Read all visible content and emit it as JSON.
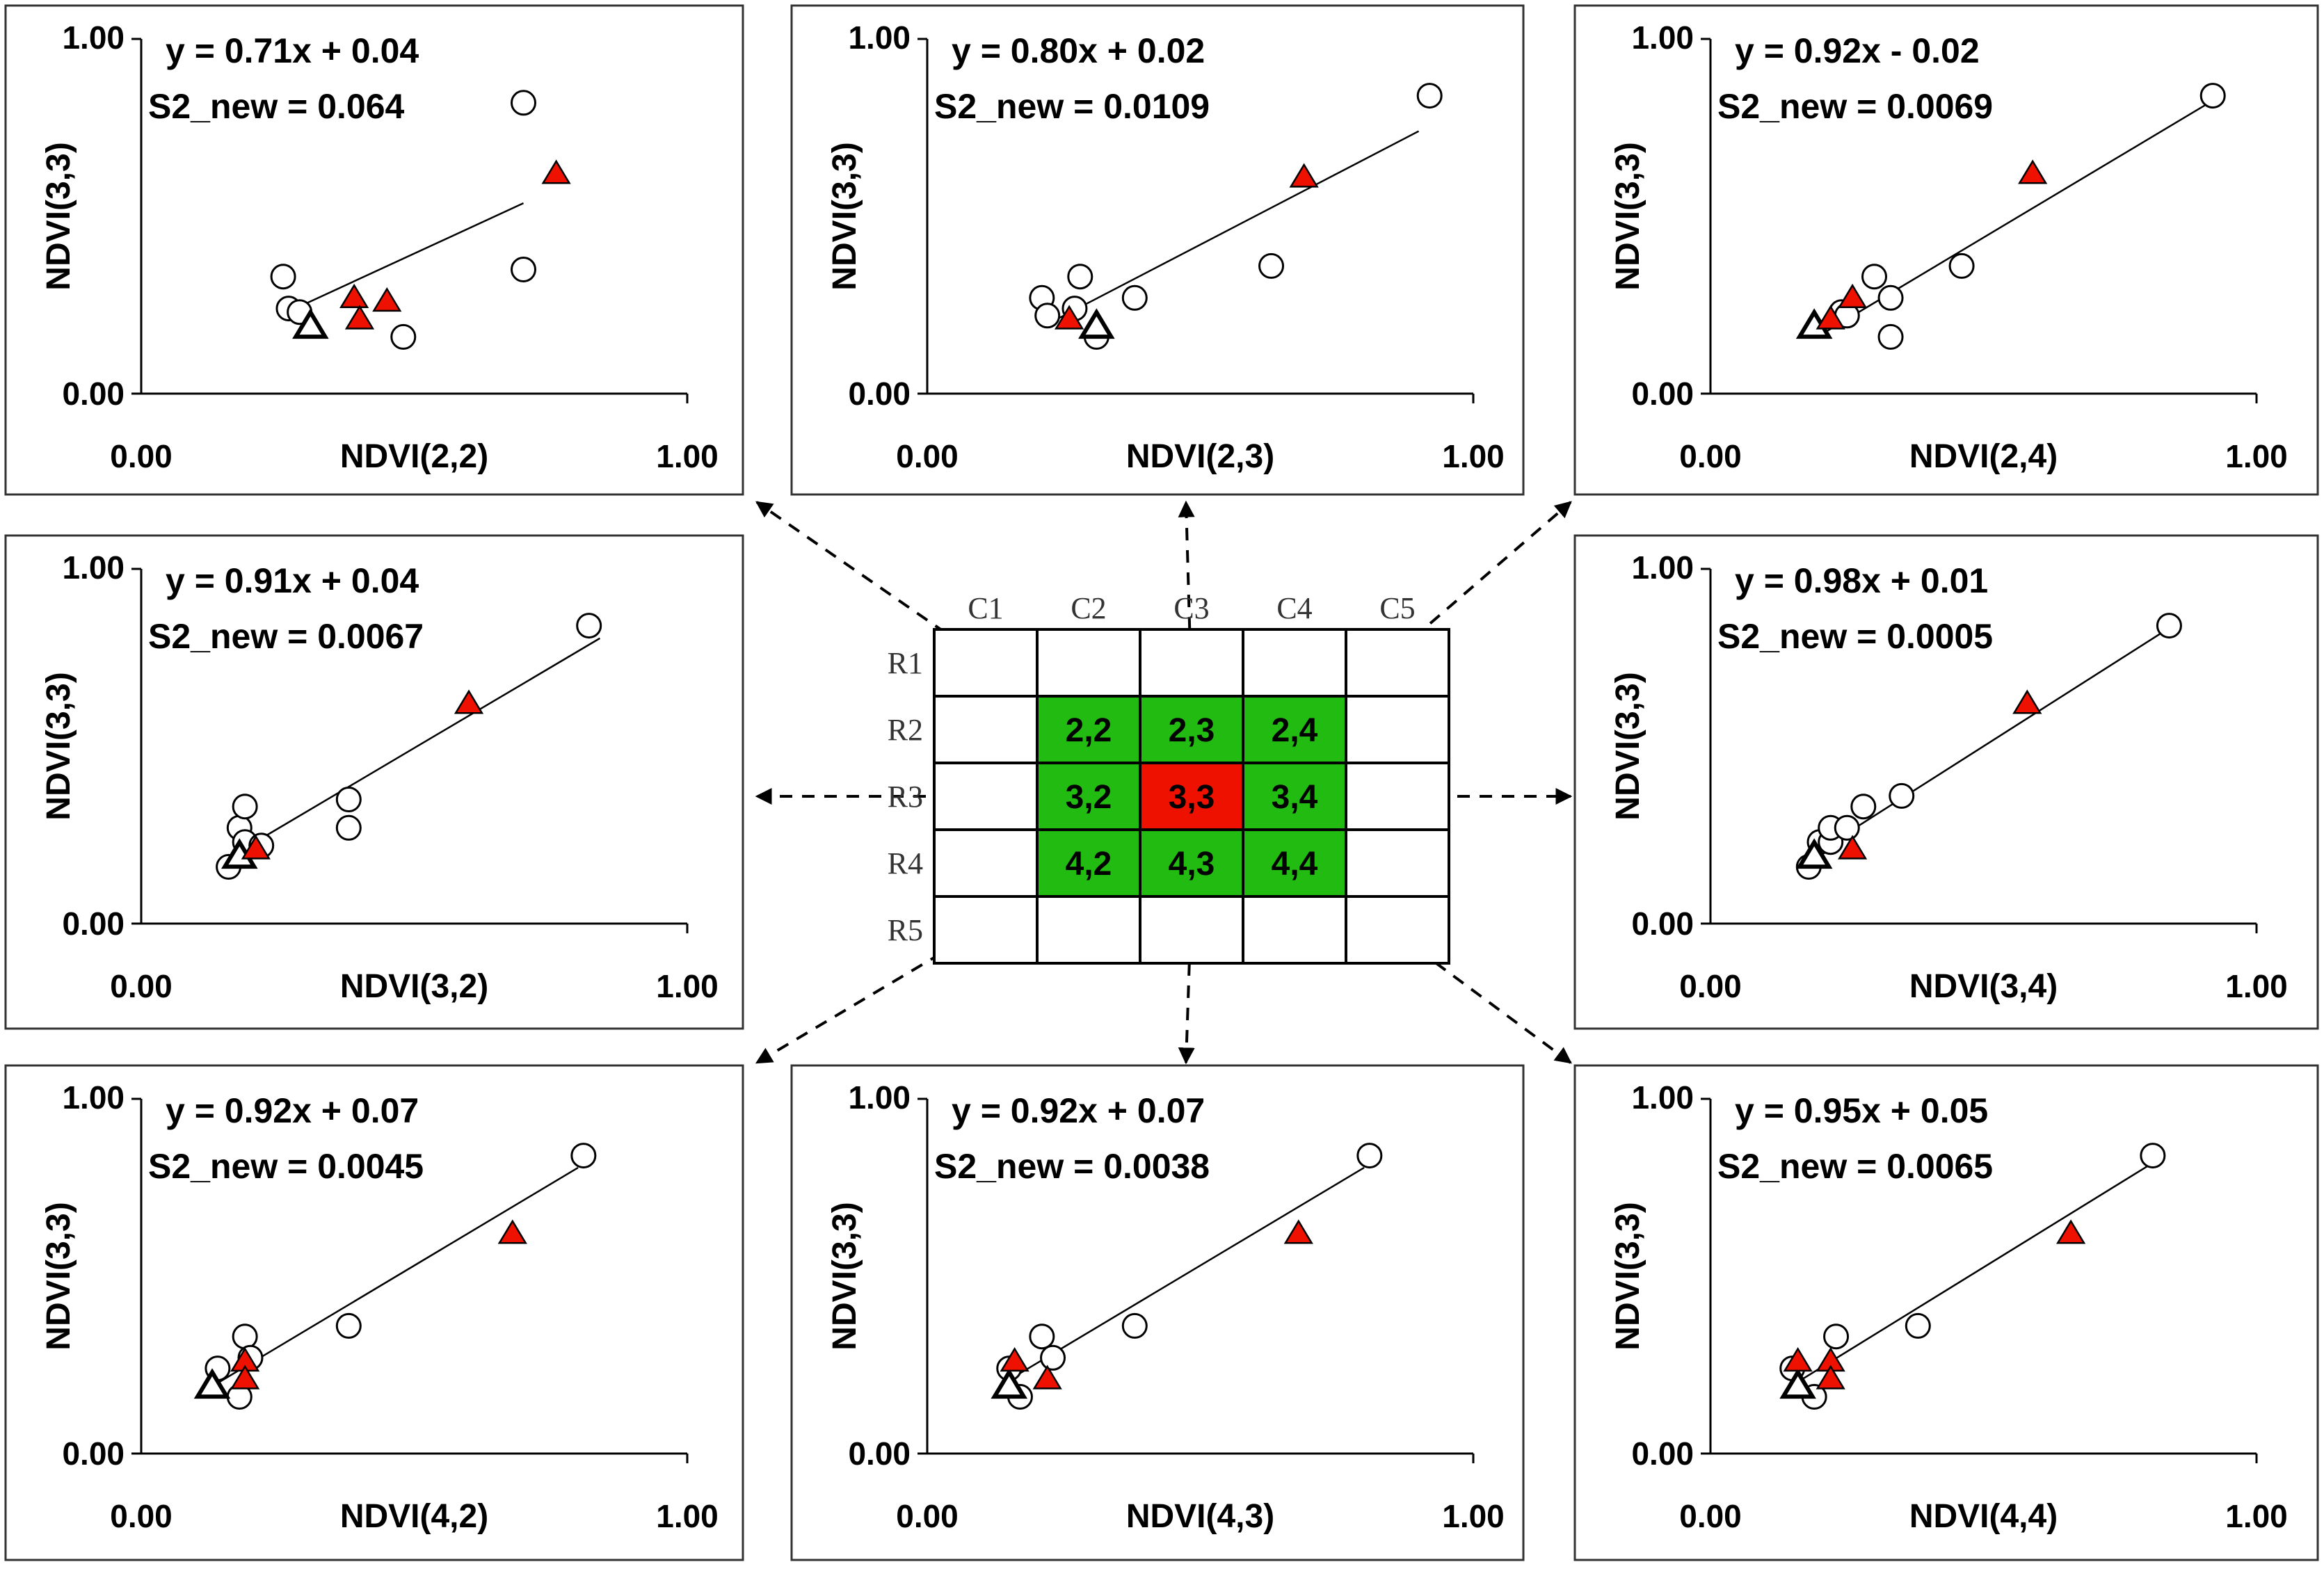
{
  "chart_data": [
    {
      "type": "scatter",
      "xlabel": "NDVI(2,2)",
      "ylabel": "NDVI(3,3)",
      "xlim": [
        0,
        1
      ],
      "ylim": [
        0,
        1
      ],
      "xticks": [
        "0.00",
        "1.00"
      ],
      "yticks": [
        "0.00",
        "1.00"
      ],
      "equation": "y = 0.71x + 0.04",
      "s2_new": "S2_new = 0.064",
      "slope": 0.71,
      "intercept": 0.04,
      "fit_range": [
        0.28,
        0.7
      ],
      "circles": [
        [
          0.26,
          0.33
        ],
        [
          0.27,
          0.24
        ],
        [
          0.29,
          0.23
        ],
        [
          0.48,
          0.16
        ],
        [
          0.7,
          0.82
        ],
        [
          0.7,
          0.35
        ]
      ],
      "red_triangles": [
        [
          0.39,
          0.27
        ],
        [
          0.4,
          0.21
        ],
        [
          0.45,
          0.26
        ],
        [
          0.76,
          0.62
        ]
      ],
      "open_triangles": [
        [
          0.31,
          0.19
        ]
      ]
    },
    {
      "type": "scatter",
      "xlabel": "NDVI(2,3)",
      "ylabel": "NDVI(3,3)",
      "xlim": [
        0,
        1
      ],
      "ylim": [
        0,
        1
      ],
      "xticks": [
        "0.00",
        "1.00"
      ],
      "yticks": [
        "0.00",
        "1.00"
      ],
      "equation": "y = 0.80x + 0.02",
      "s2_new": "S2_new = 0.0109",
      "slope": 0.8,
      "intercept": 0.02,
      "fit_range": [
        0.22,
        0.9
      ],
      "circles": [
        [
          0.21,
          0.27
        ],
        [
          0.22,
          0.22
        ],
        [
          0.27,
          0.24
        ],
        [
          0.28,
          0.33
        ],
        [
          0.31,
          0.16
        ],
        [
          0.38,
          0.27
        ],
        [
          0.63,
          0.36
        ],
        [
          0.92,
          0.84
        ]
      ],
      "red_triangles": [
        [
          0.26,
          0.21
        ],
        [
          0.69,
          0.61
        ]
      ],
      "open_triangles": [
        [
          0.31,
          0.19
        ]
      ]
    },
    {
      "type": "scatter",
      "xlabel": "NDVI(2,4)",
      "ylabel": "NDVI(3,3)",
      "xlim": [
        0,
        1
      ],
      "ylim": [
        0,
        1
      ],
      "xticks": [
        "0.00",
        "1.00"
      ],
      "yticks": [
        "0.00",
        "1.00"
      ],
      "equation": "y = 0.92x - 0.02",
      "s2_new": "S2_new = 0.0069",
      "slope": 0.92,
      "intercept": -0.02,
      "fit_range": [
        0.2,
        0.93
      ],
      "circles": [
        [
          0.24,
          0.23
        ],
        [
          0.25,
          0.22
        ],
        [
          0.3,
          0.33
        ],
        [
          0.33,
          0.27
        ],
        [
          0.33,
          0.16
        ],
        [
          0.46,
          0.36
        ],
        [
          0.92,
          0.84
        ]
      ],
      "red_triangles": [
        [
          0.22,
          0.21
        ],
        [
          0.26,
          0.27
        ],
        [
          0.59,
          0.62
        ]
      ],
      "open_triangles": [
        [
          0.19,
          0.19
        ]
      ]
    },
    {
      "type": "scatter",
      "xlabel": "NDVI(3,2)",
      "ylabel": "NDVI(3,3)",
      "xlim": [
        0,
        1
      ],
      "ylim": [
        0,
        1
      ],
      "xticks": [
        "0.00",
        "1.00"
      ],
      "yticks": [
        "0.00",
        "1.00"
      ],
      "equation": "y = 0.91x + 0.04",
      "s2_new": "S2_new = 0.0067",
      "slope": 0.91,
      "intercept": 0.04,
      "fit_range": [
        0.14,
        0.84
      ],
      "circles": [
        [
          0.16,
          0.16
        ],
        [
          0.18,
          0.27
        ],
        [
          0.19,
          0.33
        ],
        [
          0.19,
          0.23
        ],
        [
          0.22,
          0.22
        ],
        [
          0.38,
          0.35
        ],
        [
          0.38,
          0.27
        ],
        [
          0.82,
          0.84
        ]
      ],
      "red_triangles": [
        [
          0.21,
          0.21
        ],
        [
          0.6,
          0.62
        ]
      ],
      "open_triangles": [
        [
          0.18,
          0.19
        ]
      ]
    },
    {
      "type": "scatter",
      "xlabel": "NDVI(3,4)",
      "ylabel": "NDVI(3,3)",
      "xlim": [
        0,
        1
      ],
      "ylim": [
        0,
        1
      ],
      "xticks": [
        "0.00",
        "1.00"
      ],
      "yticks": [
        "0.00",
        "1.00"
      ],
      "equation": "y = 0.98x + 0.01",
      "s2_new": "S2_new = 0.0005",
      "slope": 0.98,
      "intercept": 0.01,
      "fit_range": [
        0.17,
        0.85
      ],
      "circles": [
        [
          0.18,
          0.16
        ],
        [
          0.2,
          0.23
        ],
        [
          0.22,
          0.23
        ],
        [
          0.22,
          0.27
        ],
        [
          0.25,
          0.27
        ],
        [
          0.28,
          0.33
        ],
        [
          0.35,
          0.36
        ],
        [
          0.84,
          0.84
        ]
      ],
      "red_triangles": [
        [
          0.26,
          0.21
        ],
        [
          0.58,
          0.62
        ]
      ],
      "open_triangles": [
        [
          0.19,
          0.19
        ]
      ]
    },
    {
      "type": "scatter",
      "xlabel": "NDVI(4,2)",
      "ylabel": "NDVI(3,3)",
      "xlim": [
        0,
        1
      ],
      "ylim": [
        0,
        1
      ],
      "xticks": [
        "0.00",
        "1.00"
      ],
      "yticks": [
        "0.00",
        "1.00"
      ],
      "equation": "y = 0.92x + 0.07",
      "s2_new": "S2_new = 0.0045",
      "slope": 0.92,
      "intercept": 0.07,
      "fit_range": [
        0.12,
        0.8
      ],
      "circles": [
        [
          0.14,
          0.24
        ],
        [
          0.18,
          0.16
        ],
        [
          0.19,
          0.33
        ],
        [
          0.2,
          0.27
        ],
        [
          0.38,
          0.36
        ],
        [
          0.81,
          0.84
        ]
      ],
      "red_triangles": [
        [
          0.19,
          0.26
        ],
        [
          0.19,
          0.21
        ],
        [
          0.68,
          0.62
        ]
      ],
      "open_triangles": [
        [
          0.13,
          0.19
        ]
      ]
    },
    {
      "type": "scatter",
      "xlabel": "NDVI(4,3)",
      "ylabel": "NDVI(3,3)",
      "xlim": [
        0,
        1
      ],
      "ylim": [
        0,
        1
      ],
      "xticks": [
        "0.00",
        "1.00"
      ],
      "yticks": [
        "0.00",
        "1.00"
      ],
      "equation": "y = 0.92x + 0.07",
      "s2_new": "S2_new = 0.0038",
      "slope": 0.92,
      "intercept": 0.07,
      "fit_range": [
        0.15,
        0.8
      ],
      "circles": [
        [
          0.15,
          0.24
        ],
        [
          0.17,
          0.16
        ],
        [
          0.21,
          0.33
        ],
        [
          0.23,
          0.27
        ],
        [
          0.38,
          0.36
        ],
        [
          0.81,
          0.84
        ]
      ],
      "red_triangles": [
        [
          0.16,
          0.26
        ],
        [
          0.22,
          0.21
        ],
        [
          0.68,
          0.62
        ]
      ],
      "open_triangles": [
        [
          0.15,
          0.19
        ]
      ]
    },
    {
      "type": "scatter",
      "xlabel": "NDVI(4,4)",
      "ylabel": "NDVI(3,3)",
      "xlim": [
        0,
        1
      ],
      "ylim": [
        0,
        1
      ],
      "xticks": [
        "0.00",
        "1.00"
      ],
      "yticks": [
        "0.00",
        "1.00"
      ],
      "equation": "y = 0.95x + 0.05",
      "s2_new": "S2_new = 0.0065",
      "slope": 0.95,
      "intercept": 0.05,
      "fit_range": [
        0.15,
        0.8
      ],
      "circles": [
        [
          0.15,
          0.24
        ],
        [
          0.19,
          0.16
        ],
        [
          0.23,
          0.33
        ],
        [
          0.38,
          0.36
        ],
        [
          0.81,
          0.84
        ]
      ],
      "red_triangles": [
        [
          0.16,
          0.26
        ],
        [
          0.22,
          0.26
        ],
        [
          0.22,
          0.21
        ],
        [
          0.66,
          0.62
        ]
      ],
      "open_triangles": [
        [
          0.16,
          0.19
        ]
      ]
    }
  ],
  "grid": {
    "col_labels": [
      "C1",
      "C2",
      "C3",
      "C4",
      "C5"
    ],
    "row_labels": [
      "R1",
      "R2",
      "R3",
      "R4",
      "R5"
    ],
    "cells": [
      [
        "",
        "",
        "",
        "",
        ""
      ],
      [
        "",
        "2,2",
        "2,3",
        "2,4",
        ""
      ],
      [
        "",
        "3,2",
        "3,3",
        "3,4",
        ""
      ],
      [
        "",
        "4,2",
        "4,3",
        "4,4",
        ""
      ],
      [
        "",
        "",
        "",
        "",
        ""
      ]
    ],
    "colors": {
      "neighbor": "#22bb11",
      "center": "#ee1100",
      "empty": "#ffffff"
    }
  },
  "colors": {
    "triangle_fill": "#ee1100",
    "line": "#000000"
  }
}
